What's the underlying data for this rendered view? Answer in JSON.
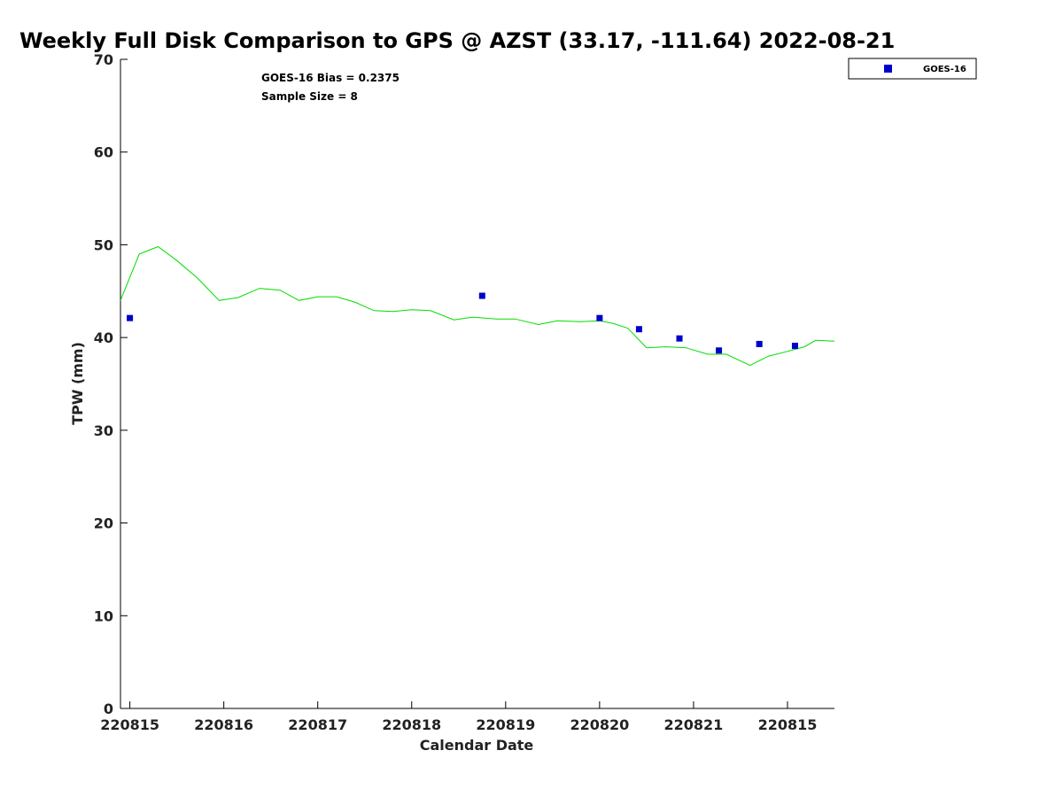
{
  "chart_data": {
    "type": "scatter",
    "title": "Weekly Full Disk Comparison to GPS @ AZST (33.17, -111.64) 2022-08-21",
    "xlabel": "Calendar Date",
    "ylabel": "TPW (mm)",
    "xlim": [
      -0.1,
      7.5
    ],
    "ylim": [
      0,
      70
    ],
    "yticks": [
      0,
      10,
      20,
      30,
      40,
      50,
      60,
      70
    ],
    "xticks": [
      {
        "x": 0,
        "label": "220815"
      },
      {
        "x": 1,
        "label": "220816"
      },
      {
        "x": 2,
        "label": "220817"
      },
      {
        "x": 3,
        "label": "220818"
      },
      {
        "x": 4,
        "label": "220819"
      },
      {
        "x": 5,
        "label": "220820"
      },
      {
        "x": 6,
        "label": "220821"
      },
      {
        "x": 7,
        "label": "220815"
      }
    ],
    "grid": false,
    "legend": {
      "position": "top-right",
      "entries": [
        "GOES-16"
      ]
    },
    "annotations": [
      "GOES-16 Bias = 0.2375",
      "Sample Size = 8"
    ],
    "series": [
      {
        "name": "GOES-16",
        "kind": "scatter",
        "color": "#0000cc",
        "x": [
          0.0,
          3.75,
          5.0,
          5.42,
          5.85,
          6.27,
          6.7,
          7.08
        ],
        "y": [
          42.1,
          44.5,
          42.1,
          40.9,
          39.9,
          38.6,
          39.3,
          39.1
        ]
      },
      {
        "kind": "line",
        "color": "#00dd00",
        "x": [
          -0.1,
          0.1,
          0.3,
          0.5,
          0.72,
          0.95,
          1.15,
          1.38,
          1.6,
          1.8,
          2.0,
          2.2,
          2.4,
          2.6,
          2.8,
          3.0,
          3.2,
          3.45,
          3.65,
          3.9,
          4.1,
          4.35,
          4.55,
          4.8,
          5.0,
          5.15,
          5.3,
          5.5,
          5.7,
          5.92,
          6.15,
          6.35,
          6.6,
          6.8,
          7.0,
          7.18,
          7.3,
          7.5
        ],
        "y": [
          44.0,
          49.0,
          49.8,
          48.3,
          46.4,
          44.0,
          44.3,
          45.3,
          45.1,
          44.0,
          44.4,
          44.4,
          43.8,
          42.9,
          42.8,
          43.0,
          42.9,
          41.9,
          42.2,
          42.0,
          42.0,
          41.4,
          41.8,
          41.7,
          41.8,
          41.5,
          41.0,
          38.9,
          39.0,
          38.9,
          38.2,
          38.2,
          37.0,
          38.0,
          38.5,
          39.0,
          39.7,
          39.6
        ]
      }
    ]
  }
}
